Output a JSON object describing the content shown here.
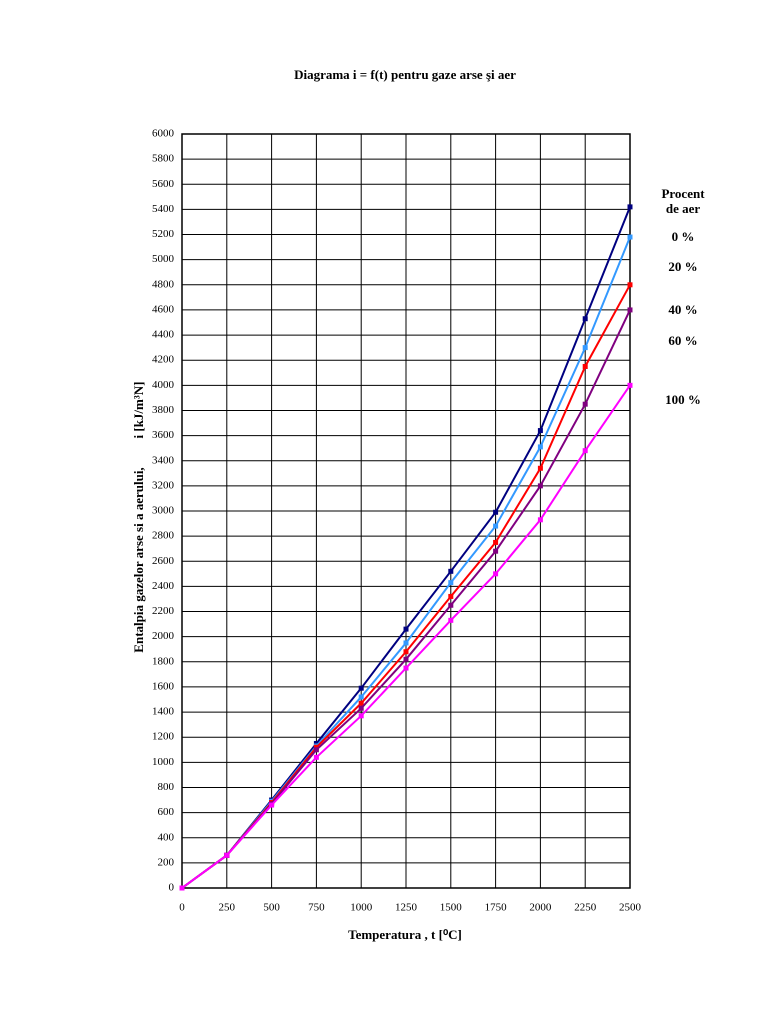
{
  "chart_data": {
    "type": "line",
    "title": "Diagrama i = f(t) pentru gaze arse şi aer",
    "xlabel": "Temperatura ,  t  [⁰C]",
    "ylabel": "Entalpia gazelor arse si a aerului,",
    "ylabel_unit": "i  [kJ/m³N]",
    "legend_title": [
      "Procent",
      "de aer"
    ],
    "x": [
      0,
      250,
      500,
      750,
      1000,
      1250,
      1500,
      1750,
      2000,
      2250,
      2500
    ],
    "series": [
      {
        "name": "0 %",
        "color": "#000080",
        "values": [
          0,
          260,
          700,
          1150,
          1590,
          2060,
          2520,
          2990,
          3640,
          4530,
          5420
        ]
      },
      {
        "name": "20 %",
        "color": "#3399ff",
        "values": [
          0,
          260,
          690,
          1130,
          1520,
          1950,
          2430,
          2880,
          3510,
          4300,
          5180
        ]
      },
      {
        "name": "40 %",
        "color": "#ff0000",
        "values": [
          0,
          260,
          680,
          1120,
          1470,
          1880,
          2320,
          2750,
          3340,
          4150,
          4800
        ]
      },
      {
        "name": "60 %",
        "color": "#800080",
        "values": [
          0,
          260,
          670,
          1100,
          1430,
          1820,
          2250,
          2680,
          3200,
          3850,
          4600
        ]
      },
      {
        "name": "100 %",
        "color": "#ff00ff",
        "values": [
          0,
          260,
          660,
          1040,
          1370,
          1750,
          2130,
          2500,
          2930,
          3480,
          4000
        ]
      }
    ],
    "xlim": [
      0,
      2500
    ],
    "xticks": [
      0,
      250,
      500,
      750,
      1000,
      1250,
      1500,
      1750,
      2000,
      2250,
      2500
    ],
    "ylim": [
      0,
      6000
    ],
    "yticks": [
      0,
      200,
      400,
      600,
      800,
      1000,
      1200,
      1400,
      1600,
      1800,
      2000,
      2200,
      2400,
      2600,
      2800,
      3000,
      3200,
      3400,
      3600,
      3800,
      4000,
      4200,
      4400,
      4600,
      4800,
      5000,
      5200,
      5400,
      5600,
      5800,
      6000
    ],
    "grid": true
  }
}
